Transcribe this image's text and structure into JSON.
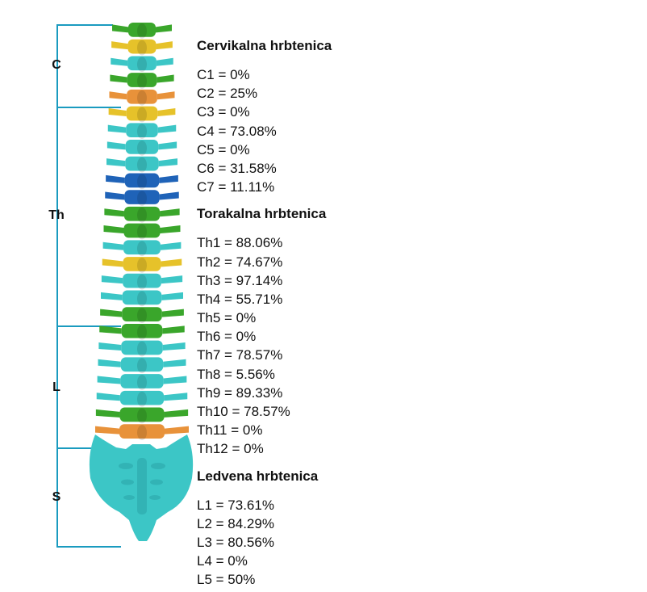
{
  "regions": [
    {
      "label": "C"
    },
    {
      "label": "Th"
    },
    {
      "label": "L"
    },
    {
      "label": "S"
    }
  ],
  "sections": [
    {
      "title": "Cervikalna hrbtenica",
      "items": [
        "C1 = 0%",
        "C2 = 25%",
        "C3 = 0%",
        "C4 = 73.08%",
        "C5 = 0%",
        "C6 = 31.58%",
        "C7 = 11.11%"
      ]
    },
    {
      "title": "Torakalna hrbtenica",
      "items": [
        "Th1 = 88.06%",
        "Th2 = 74.67%",
        "Th3 = 97.14%",
        "Th4 = 55.71%",
        "Th5 = 0%",
        "Th6 = 0%",
        "Th7 = 78.57%",
        "Th8 = 5.56%",
        "Th9 = 89.33%",
        "Th10 = 78.57%",
        "Th11 = 0%",
        "Th12 = 0%"
      ]
    },
    {
      "title": "Ledvena hrbtenica",
      "items": [
        "L1 = 73.61%",
        "L2 = 84.29%",
        "L3 = 80.56%",
        "L4 = 0%",
        "L5 = 50%"
      ]
    }
  ],
  "colors": {
    "bracket": "#1a9bbf",
    "cyan": "#3cc6c6",
    "green": "#3aa62b",
    "yellow": "#e6c22a",
    "orange": "#e8923a",
    "blue": "#1f63b8"
  },
  "vertebra_colors": [
    "green",
    "yellow",
    "cyan",
    "green",
    "orange",
    "yellow",
    "cyan",
    "cyan",
    "cyan",
    "blue",
    "blue",
    "green",
    "green",
    "cyan",
    "yellow",
    "cyan",
    "cyan",
    "green",
    "green",
    "cyan",
    "cyan",
    "cyan",
    "cyan",
    "green",
    "orange"
  ]
}
